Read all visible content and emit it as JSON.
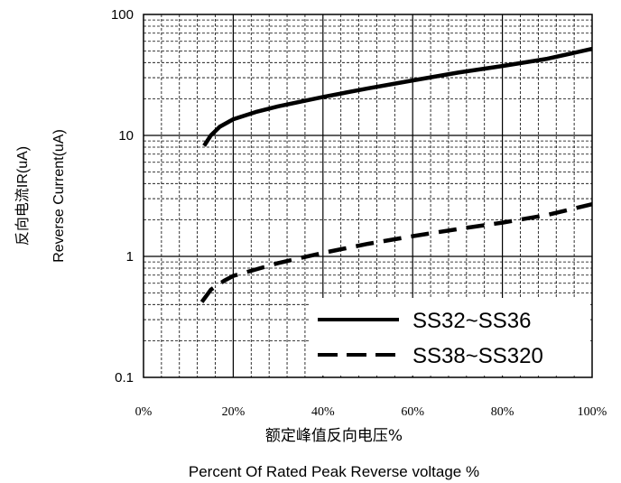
{
  "chart_data": {
    "type": "line",
    "x_tick_labels": [
      "0%",
      "20%",
      "40%",
      "60%",
      "80%",
      "100%"
    ],
    "y_tick_labels": [
      "0.1",
      "1",
      "10",
      "100"
    ],
    "xlim": [
      0,
      100
    ],
    "ylim": [
      0.1,
      100
    ],
    "y_scale": "log",
    "grid": true,
    "legend_placement": "bottom-right",
    "ylabel_cn": "反向电流IR(uA)",
    "ylabel_en": "Reverse Current(uA)",
    "xlabel_cn": "额定峰值反向电压%",
    "xlabel_en": "Percent Of Rated Peak Reverse voltage %",
    "series": [
      {
        "name": "SS32~SS36",
        "line_style": "solid",
        "x": [
          13.5,
          15,
          17,
          20,
          25,
          30,
          40,
          50,
          60,
          70,
          80,
          90,
          100
        ],
        "y": [
          8.2,
          10.0,
          11.8,
          13.6,
          15.6,
          17.4,
          20.8,
          24.5,
          28.5,
          33.0,
          37.5,
          43.0,
          52.0
        ]
      },
      {
        "name": "SS38~SS320",
        "line_style": "dashed",
        "x": [
          13,
          15,
          18,
          20,
          25,
          30,
          40,
          50,
          60,
          70,
          80,
          90,
          100
        ],
        "y": [
          0.42,
          0.53,
          0.63,
          0.69,
          0.78,
          0.88,
          1.07,
          1.27,
          1.47,
          1.68,
          1.9,
          2.2,
          2.7
        ]
      }
    ]
  }
}
